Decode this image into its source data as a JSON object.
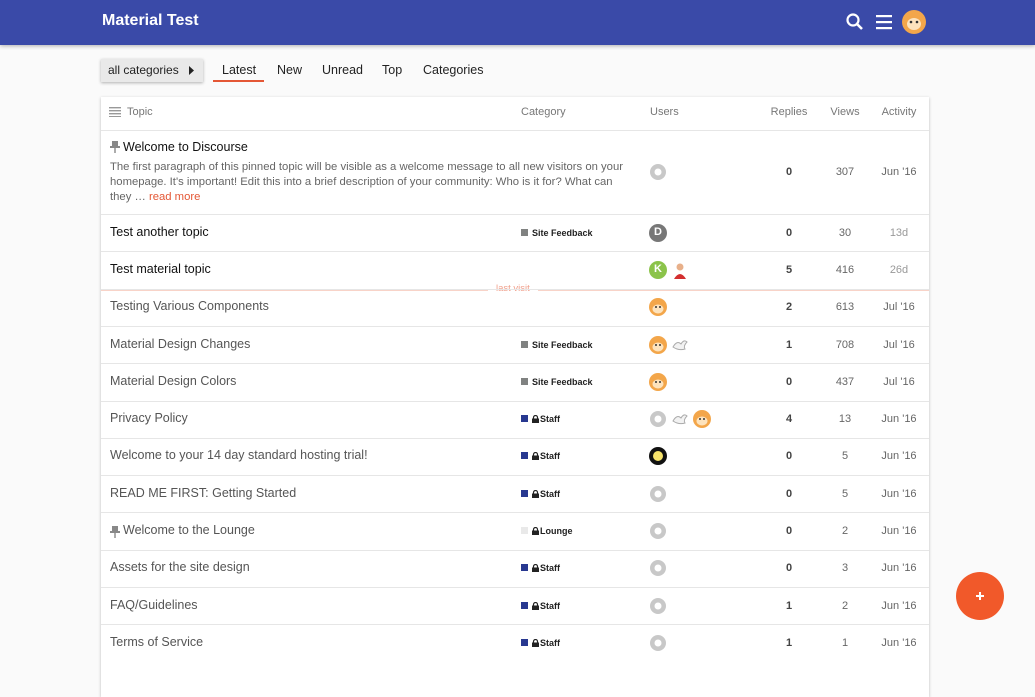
{
  "header": {
    "title": "Material Test"
  },
  "nav": {
    "category_dropdown": "all categories",
    "tabs": [
      "Latest",
      "New",
      "Unread",
      "Top",
      "Categories"
    ]
  },
  "table": {
    "columns": [
      "Topic",
      "Category",
      "Users",
      "Replies",
      "Views",
      "Activity"
    ],
    "last_visit": "last visit",
    "topics": [
      {
        "title": "Welcome to Discourse",
        "excerpt": "The first paragraph of this pinned topic will be visible as a welcome message to all new visitors on your homepage. It's important! Edit this into a brief description of your community: Who is it for? What can they …",
        "read_more": "read more",
        "replies": 0,
        "views": 307,
        "activity": "Jun '16"
      },
      {
        "title": "Test another topic",
        "category": {
          "name": "Site Feedback",
          "color": "#808281"
        },
        "user_letters": [
          "D"
        ],
        "replies": 0,
        "views": 30,
        "activity": "13d"
      },
      {
        "title": "Test material topic",
        "user_letters": [
          "K"
        ],
        "replies": 5,
        "views": 416,
        "activity": "26d"
      },
      {
        "title": "Testing Various Components",
        "replies": 2,
        "views": 613,
        "activity": "Jul '16"
      },
      {
        "title": "Material Design Changes",
        "category": {
          "name": "Site Feedback",
          "color": "#808281"
        },
        "replies": 1,
        "views": 708,
        "activity": "Jul '16"
      },
      {
        "title": "Material Design Colors",
        "category": {
          "name": "Site Feedback",
          "color": "#808281"
        },
        "replies": 0,
        "views": 437,
        "activity": "Jul '16"
      },
      {
        "title": "Privacy Policy",
        "category": {
          "name": "Staff",
          "color": "#283890"
        },
        "replies": 4,
        "views": 13,
        "activity": "Jun '16"
      },
      {
        "title": "Welcome to your 14 day standard hosting trial!",
        "category": {
          "name": "Staff",
          "color": "#283890"
        },
        "replies": 0,
        "views": 5,
        "activity": "Jun '16"
      },
      {
        "title": "READ ME FIRST: Getting Started",
        "category": {
          "name": "Staff",
          "color": "#283890"
        },
        "replies": 0,
        "views": 5,
        "activity": "Jun '16"
      },
      {
        "title": "Welcome to the Lounge",
        "category": {
          "name": "Lounge",
          "color": "#e9e9e9"
        },
        "replies": 0,
        "views": 2,
        "activity": "Jun '16"
      },
      {
        "title": "Assets for the site design",
        "category": {
          "name": "Staff",
          "color": "#283890"
        },
        "replies": 0,
        "views": 3,
        "activity": "Jun '16"
      },
      {
        "title": "FAQ/Guidelines",
        "category": {
          "name": "Staff",
          "color": "#283890"
        },
        "replies": 1,
        "views": 2,
        "activity": "Jun '16"
      },
      {
        "title": "Terms of Service",
        "category": {
          "name": "Staff",
          "color": "#283890"
        },
        "replies": 1,
        "views": 1,
        "activity": "Jun '16"
      }
    ]
  }
}
